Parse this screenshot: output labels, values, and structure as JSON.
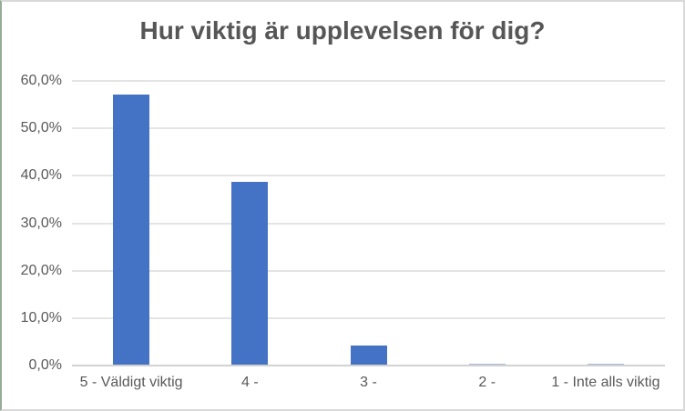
{
  "chart": {
    "title": "Hur viktig är upplevelsen för dig?"
  },
  "chart_data": {
    "type": "bar",
    "title": "Hur viktig är upplevelsen för dig?",
    "categories": [
      "5 - Väldigt viktig",
      "4 -",
      "3 -",
      "2 -",
      "1 - Inte alls viktig"
    ],
    "values": [
      57.0,
      38.6,
      4.1,
      0.2,
      0.2
    ],
    "y_tick_labels": [
      "60,0%",
      "50,0%",
      "40,0%",
      "30,0%",
      "20,0%",
      "10,0%",
      "0,0%"
    ],
    "ylim": [
      0,
      60
    ],
    "xlabel": "",
    "ylabel": "",
    "grid": true,
    "legend": false,
    "colors": {
      "bar": "#4472C4",
      "bar_sliver": "#A6BAE0",
      "gridline": "#E4E4E4",
      "axis_line": "#D2D2D2",
      "title_text": "#565656",
      "tick_text": "#595959",
      "border": "#D9D9D9",
      "border_left": "#95AC95",
      "background": "#FFFFFF"
    }
  }
}
